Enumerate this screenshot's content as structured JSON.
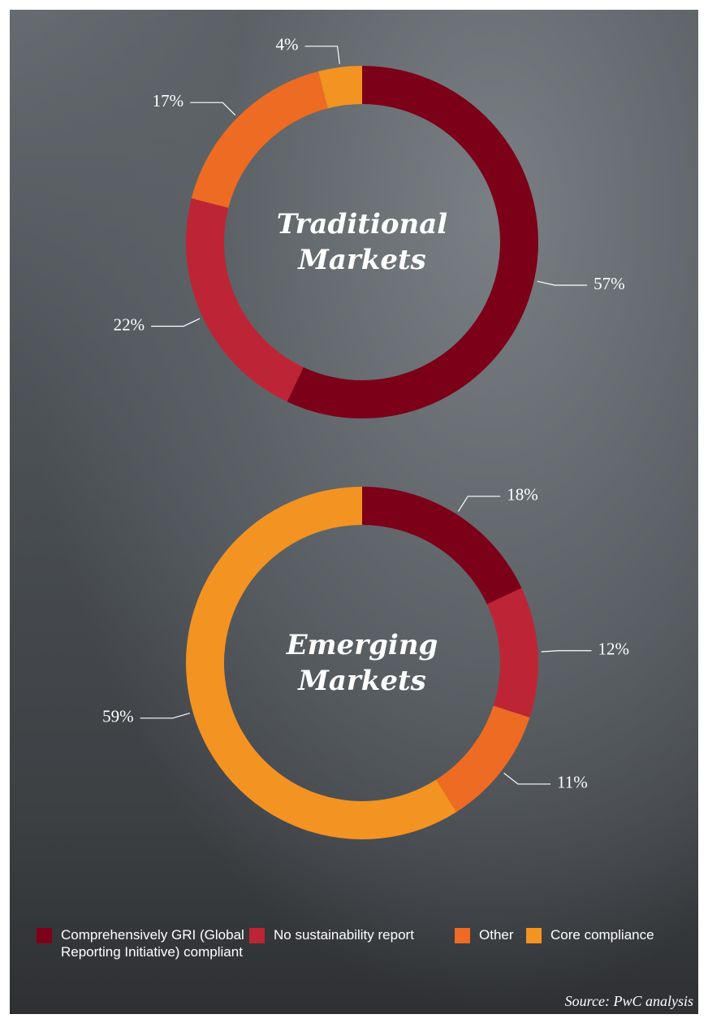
{
  "chart_data": [
    {
      "type": "donut",
      "title": "Traditional Markets",
      "categories": [
        "Comprehensively GRI (Global Reporting Initiative) compliant",
        "No sustainability report",
        "Other",
        "Core compliance"
      ],
      "values": [
        57,
        22,
        17,
        4
      ],
      "value_labels": [
        "57%",
        "22%",
        "17%",
        "4%"
      ],
      "colors": [
        "#7d0019",
        "#bd2536",
        "#ed6b22",
        "#f39322"
      ]
    },
    {
      "type": "donut",
      "title": "Emerging Markets",
      "categories": [
        "Comprehensively GRI (Global Reporting Initiative) compliant",
        "No sustainability report",
        "Other",
        "Core compliance"
      ],
      "values": [
        18,
        12,
        11,
        59
      ],
      "value_labels": [
        "18%",
        "12%",
        "11%",
        "59%"
      ],
      "colors": [
        "#7d0019",
        "#bd2536",
        "#ed6b22",
        "#f39322"
      ]
    }
  ],
  "source": "Source: PwC analysis"
}
